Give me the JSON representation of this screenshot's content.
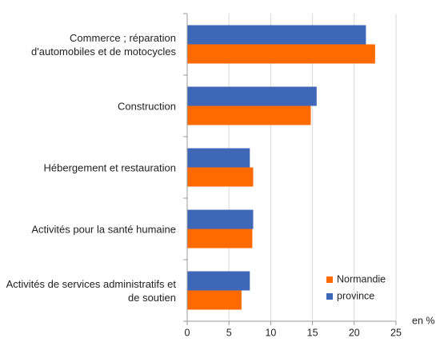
{
  "chart_data": {
    "type": "hbar",
    "categories": [
      "Commerce ; réparation d'automobiles et de motocycles",
      "Construction",
      "Hébergement et restauration",
      "Activités pour la santé humaine",
      "Activités de services administratifs et de soutien"
    ],
    "series": [
      {
        "name": "Normandie",
        "color": "#ff6a00",
        "values": [
          22.5,
          14.8,
          7.9,
          7.8,
          6.5
        ]
      },
      {
        "name": "province",
        "color": "#3f67b8",
        "values": [
          21.4,
          15.5,
          7.5,
          7.9,
          7.5
        ]
      }
    ],
    "xlabel": "en %",
    "xlim": [
      0,
      25
    ],
    "xticks": [
      0,
      5,
      10,
      15,
      20,
      25
    ],
    "grid": true,
    "legend": "lower right"
  }
}
